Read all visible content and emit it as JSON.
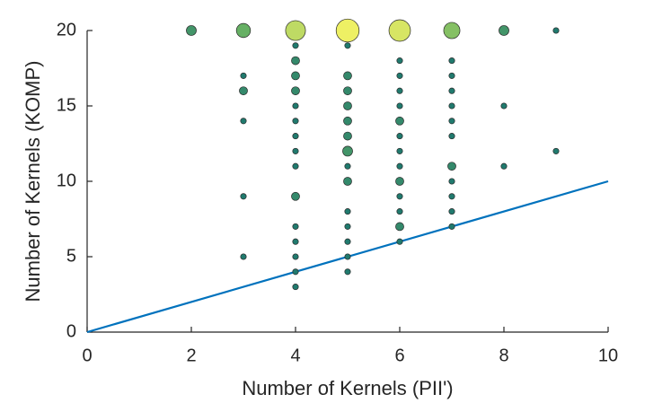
{
  "chart_data": {
    "type": "scatter",
    "xlabel": "Number of Kernels (PII')",
    "ylabel": "Number of Kernels (KOMP)",
    "x": [
      2,
      3,
      3,
      3,
      3,
      3,
      3,
      4,
      4,
      4,
      4,
      4,
      4,
      4,
      4,
      4,
      4,
      4,
      4,
      4,
      4,
      4,
      4,
      5,
      5,
      5,
      5,
      5,
      5,
      5,
      5,
      5,
      5,
      5,
      5,
      5,
      5,
      5,
      6,
      6,
      6,
      6,
      6,
      6,
      6,
      6,
      6,
      6,
      6,
      6,
      6,
      6,
      7,
      7,
      7,
      7,
      7,
      7,
      7,
      7,
      7,
      7,
      7,
      7,
      8,
      8,
      8,
      9,
      9
    ],
    "y": [
      20,
      20,
      17,
      16,
      14,
      9,
      5,
      20,
      19,
      18,
      17,
      16,
      15,
      14,
      13,
      12,
      11,
      9,
      7,
      6,
      5,
      4,
      3,
      20,
      19,
      17,
      16,
      15,
      14,
      13,
      12,
      11,
      10,
      8,
      7,
      6,
      5,
      4,
      20,
      18,
      17,
      16,
      15,
      14,
      13,
      12,
      11,
      10,
      9,
      8,
      7,
      6,
      20,
      18,
      17,
      16,
      15,
      14,
      13,
      11,
      10,
      9,
      8,
      7,
      20,
      15,
      11,
      20,
      12
    ],
    "sizes": [
      3,
      6,
      1,
      2,
      1,
      1,
      1,
      12,
      1,
      2,
      2,
      2,
      1,
      1,
      1,
      1,
      1,
      2,
      1,
      1,
      1,
      1,
      1,
      16,
      1,
      2,
      2,
      2,
      2,
      2,
      3,
      1,
      2,
      1,
      1,
      1,
      1,
      1,
      14,
      1,
      1,
      1,
      1,
      2,
      1,
      1,
      1,
      2,
      1,
      1,
      2,
      1,
      8,
      1,
      1,
      1,
      1,
      1,
      1,
      2,
      1,
      1,
      1,
      1,
      3,
      1,
      1,
      1,
      1
    ],
    "line": {
      "x": [
        0,
        10
      ],
      "y": [
        0,
        10
      ],
      "color": "#0072bd"
    },
    "xlim": [
      0,
      10
    ],
    "xticks": [
      0,
      2,
      4,
      6,
      8,
      10
    ],
    "ylim": [
      0,
      20
    ],
    "yticks": [
      0,
      5,
      10,
      15,
      20
    ],
    "grid": false
  }
}
